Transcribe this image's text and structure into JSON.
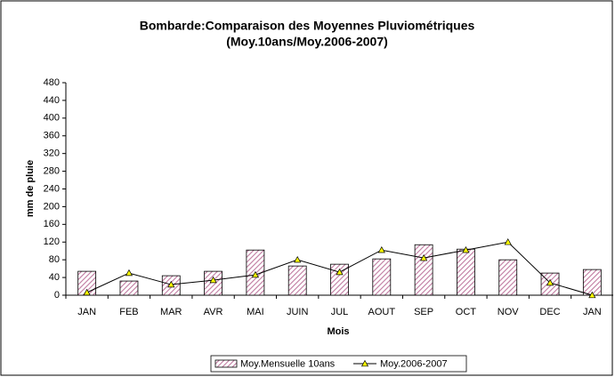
{
  "chart_data": {
    "type": "bar-line",
    "title": "Bombarde:Comparaison des Moyennes Pluviométriques",
    "subtitle": "(Moy.10ans/Moy.2006-2007)",
    "x_label": "Mois",
    "y_label": "mm de pluie",
    "categories": [
      "JAN",
      "FEB",
      "MAR",
      "AVR",
      "MAI",
      "JUIN",
      "JUL",
      "AOUT",
      "SEP",
      "OCT",
      "NOV",
      "DEC",
      "JAN"
    ],
    "series": [
      {
        "name": "Moy.Mensuelle 10ans",
        "type": "bar",
        "color": "#c07aa0",
        "values": [
          54,
          32,
          44,
          54,
          102,
          66,
          70,
          82,
          114,
          104,
          80,
          50,
          58
        ]
      },
      {
        "name": "Moy.2006-2007",
        "type": "line",
        "color": "#000000",
        "marker_color": "#ffff00",
        "values": [
          6,
          50,
          24,
          34,
          46,
          80,
          52,
          102,
          84,
          102,
          120,
          28,
          0
        ]
      }
    ],
    "ylim": [
      0,
      480
    ],
    "yticks": [
      0,
      40,
      80,
      120,
      160,
      200,
      240,
      280,
      320,
      360,
      400,
      440,
      480
    ],
    "legend": "bottom"
  }
}
